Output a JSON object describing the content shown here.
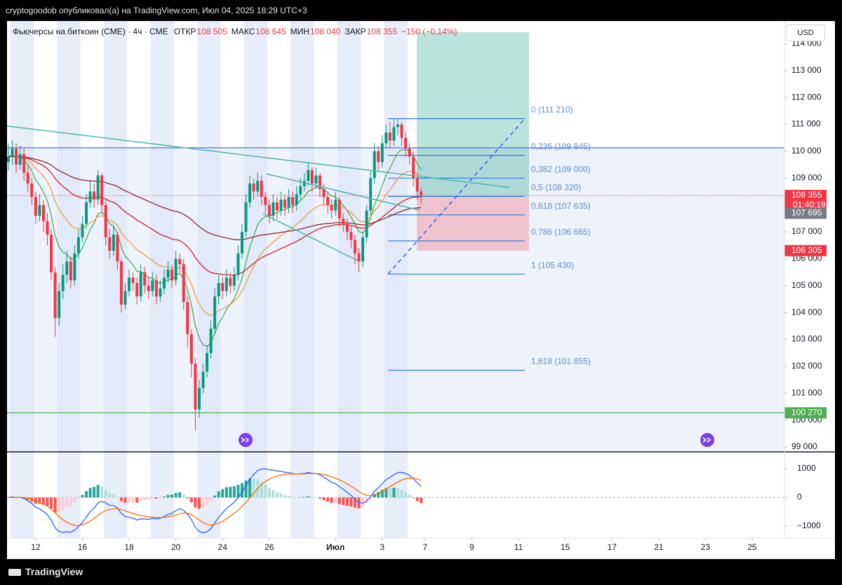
{
  "header": {
    "text": "cryptogoodob опубликовал(а) на TradingView.com, Июл 04, 2025 18:29 UTC+3"
  },
  "footer": {
    "brand": "TradingView"
  },
  "chart_data": [
    {
      "type": "candlestick",
      "title": "Фьючерсы на биткоин (CME) · 4ч · CME",
      "legend": [
        {
          "name": "ОТКР",
          "value": "108 505"
        },
        {
          "name": "МАКС",
          "value": "108 645"
        },
        {
          "name": "МИН",
          "value": "108 040"
        },
        {
          "name": "ЗАКР",
          "value": "108 355"
        }
      ],
      "change": "−150 (−0,14%)",
      "currency": "USD",
      "colors": {
        "up": "#089981",
        "down": "#f23645"
      },
      "ohlc": [
        [
          109600,
          110300,
          109300,
          109800
        ],
        [
          109800,
          110400,
          109500,
          110100
        ],
        [
          110100,
          110300,
          109200,
          109500
        ],
        [
          109500,
          110200,
          109300,
          109900
        ],
        [
          109900,
          110100,
          108900,
          109200
        ],
        [
          109200,
          109500,
          108500,
          108800
        ],
        [
          108800,
          109000,
          108000,
          108300
        ],
        [
          108300,
          108500,
          107300,
          107600
        ],
        [
          107600,
          108400,
          107400,
          108000
        ],
        [
          108000,
          108200,
          107000,
          107400
        ],
        [
          107400,
          107700,
          106500,
          106900
        ],
        [
          106900,
          107100,
          105200,
          105500
        ],
        [
          105500,
          105700,
          103100,
          103800
        ],
        [
          103800,
          105100,
          103500,
          104800
        ],
        [
          104800,
          105800,
          104500,
          105400
        ],
        [
          105400,
          106300,
          105100,
          105900
        ],
        [
          105900,
          106100,
          104900,
          105200
        ],
        [
          105200,
          106500,
          105000,
          106200
        ],
        [
          106200,
          107100,
          106000,
          106800
        ],
        [
          106800,
          107600,
          106600,
          107300
        ],
        [
          107300,
          108400,
          107100,
          108100
        ],
        [
          108100,
          108900,
          107900,
          108500
        ],
        [
          108500,
          108800,
          107900,
          108200
        ],
        [
          108200,
          109300,
          108000,
          109100
        ],
        [
          109100,
          109200,
          107700,
          108000
        ],
        [
          108000,
          108200,
          106500,
          106800
        ],
        [
          106800,
          107100,
          106000,
          106300
        ],
        [
          106300,
          107200,
          106100,
          106900
        ],
        [
          106900,
          107000,
          105600,
          105900
        ],
        [
          105900,
          106000,
          104000,
          104300
        ],
        [
          104300,
          105100,
          104100,
          104800
        ],
        [
          104800,
          105600,
          104600,
          105300
        ],
        [
          105300,
          105500,
          104800,
          105100
        ],
        [
          105100,
          105300,
          104300,
          104600
        ],
        [
          104600,
          105800,
          104400,
          105500
        ],
        [
          105500,
          105700,
          104700,
          105000
        ],
        [
          105000,
          105300,
          104500,
          104800
        ],
        [
          104800,
          105500,
          104600,
          105200
        ],
        [
          105200,
          105400,
          104300,
          104600
        ],
        [
          104600,
          105200,
          104400,
          104900
        ],
        [
          104900,
          105600,
          104700,
          105300
        ],
        [
          105300,
          105900,
          105100,
          105600
        ],
        [
          105600,
          105800,
          104900,
          105200
        ],
        [
          105200,
          106300,
          105000,
          106000
        ],
        [
          106000,
          106200,
          105500,
          105800
        ],
        [
          105800,
          106000,
          104100,
          104400
        ],
        [
          104400,
          104600,
          102700,
          103200
        ],
        [
          103200,
          103400,
          101600,
          102100
        ],
        [
          102100,
          102300,
          99600,
          100400
        ],
        [
          100400,
          101500,
          100100,
          101200
        ],
        [
          101200,
          102100,
          101000,
          101800
        ],
        [
          101800,
          102800,
          101600,
          102500
        ],
        [
          102500,
          103700,
          102300,
          103400
        ],
        [
          103400,
          104900,
          103200,
          104600
        ],
        [
          104600,
          105400,
          104300,
          105100
        ],
        [
          105100,
          105300,
          104500,
          104800
        ],
        [
          104800,
          105600,
          104600,
          105300
        ],
        [
          105300,
          105500,
          104700,
          105000
        ],
        [
          105000,
          105700,
          104800,
          105400
        ],
        [
          105400,
          106500,
          105200,
          106200
        ],
        [
          106200,
          107300,
          106000,
          107000
        ],
        [
          107000,
          108400,
          106800,
          108100
        ],
        [
          108100,
          109100,
          107900,
          108800
        ],
        [
          108800,
          109000,
          108200,
          108500
        ],
        [
          108500,
          109200,
          108300,
          108900
        ],
        [
          108900,
          109100,
          108000,
          108300
        ],
        [
          108300,
          108500,
          107700,
          108000
        ],
        [
          108000,
          108200,
          107300,
          107600
        ],
        [
          107600,
          108400,
          107400,
          108100
        ],
        [
          108100,
          108300,
          107500,
          107800
        ],
        [
          107800,
          108500,
          107600,
          108200
        ],
        [
          108200,
          108400,
          107600,
          107900
        ],
        [
          107900,
          108600,
          107700,
          108300
        ],
        [
          108300,
          108500,
          107700,
          108000
        ],
        [
          108000,
          108700,
          107800,
          108400
        ],
        [
          108400,
          109000,
          108200,
          108700
        ],
        [
          108700,
          109200,
          108500,
          108900
        ],
        [
          108900,
          109600,
          108700,
          109300
        ],
        [
          109300,
          109400,
          108500,
          108800
        ],
        [
          108800,
          109400,
          108600,
          109100
        ],
        [
          109100,
          109200,
          108300,
          108600
        ],
        [
          108600,
          108800,
          108000,
          108300
        ],
        [
          108300,
          108500,
          107700,
          108000
        ],
        [
          108000,
          108200,
          107500,
          107800
        ],
        [
          107800,
          108500,
          107600,
          108200
        ],
        [
          108200,
          108300,
          107200,
          107500
        ],
        [
          107500,
          107700,
          107000,
          107300
        ],
        [
          107300,
          107500,
          106700,
          107000
        ],
        [
          107000,
          107200,
          106400,
          106700
        ],
        [
          106700,
          106900,
          105800,
          106200
        ],
        [
          106200,
          106400,
          105500,
          105900
        ],
        [
          105900,
          107000,
          105700,
          106800
        ],
        [
          106800,
          108000,
          106600,
          107800
        ],
        [
          107800,
          109300,
          107600,
          109000
        ],
        [
          109000,
          110300,
          108800,
          110000
        ],
        [
          110000,
          110200,
          109300,
          109600
        ],
        [
          109600,
          110600,
          109400,
          110300
        ],
        [
          110300,
          111000,
          110100,
          110700
        ],
        [
          110700,
          111100,
          110100,
          110400
        ],
        [
          110400,
          111200,
          110200,
          110900
        ],
        [
          110900,
          111210,
          110600,
          111000
        ],
        [
          111000,
          111100,
          110200,
          110500
        ],
        [
          110500,
          110700,
          109800,
          110100
        ],
        [
          110100,
          110300,
          109500,
          109800
        ],
        [
          109800,
          110000,
          108700,
          109000
        ],
        [
          109000,
          109200,
          108200,
          108500
        ],
        [
          108505,
          108645,
          108040,
          108355
        ]
      ],
      "moving_averages": [
        {
          "period": 9,
          "color": "#4caf50"
        },
        {
          "period": 21,
          "color": "#f0a04b"
        },
        {
          "period": 50,
          "color": "#c62828"
        },
        {
          "period": 100,
          "color": "#8d2a2a"
        }
      ],
      "xlim": [
        -0.36,
        199.3
      ],
      "xticks": [
        {
          "value": 7,
          "label": "12"
        },
        {
          "value": 19,
          "label": "16"
        },
        {
          "value": 31,
          "label": "18"
        },
        {
          "value": 43,
          "label": "20"
        },
        {
          "value": 55,
          "label": "24"
        },
        {
          "value": 67,
          "label": "26"
        },
        {
          "value": 84,
          "label": "Июл"
        },
        {
          "value": 96,
          "label": "3"
        },
        {
          "value": 107,
          "label": "7"
        },
        {
          "value": 119,
          "label": "9"
        },
        {
          "value": 131,
          "label": "11"
        },
        {
          "value": 143,
          "label": "15"
        },
        {
          "value": 155,
          "label": "17"
        },
        {
          "value": 167,
          "label": "21"
        },
        {
          "value": 179,
          "label": "23"
        },
        {
          "value": 191,
          "label": "25"
        }
      ],
      "ylim": [
        98844,
        114846
      ],
      "yticks": [
        {
          "value": 99000,
          "label": "99 000"
        },
        {
          "value": 100000,
          "label": "100 000"
        },
        {
          "value": 101000,
          "label": "101 000"
        },
        {
          "value": 102000,
          "label": "102 000"
        },
        {
          "value": 103000,
          "label": "103 000"
        },
        {
          "value": 104000,
          "label": "104 000"
        },
        {
          "value": 105000,
          "label": "105 000"
        },
        {
          "value": 106000,
          "label": "106 000"
        },
        {
          "value": 107000,
          "label": "107 000"
        },
        {
          "value": 108000,
          "label": "108 000"
        },
        {
          "value": 109000,
          "label": "109 000"
        },
        {
          "value": 110000,
          "label": "110 000"
        },
        {
          "value": 111000,
          "label": "111 000"
        },
        {
          "value": 112000,
          "label": "112 000"
        },
        {
          "value": 113000,
          "label": "113 000"
        },
        {
          "value": 114000,
          "label": "114 000"
        }
      ],
      "fib": {
        "x": [
          97.5,
          132.6
        ],
        "levels": [
          {
            "label": "0 (111 210)",
            "value": 111210
          },
          {
            "label": "0,236 (109 845)",
            "value": 109845
          },
          {
            "label": "0,382 (109 000)",
            "value": 109000
          },
          {
            "label": "0,5 (108 320)",
            "value": 108320
          },
          {
            "label": "0,618 (107 635)",
            "value": 107635
          },
          {
            "label": "0,786 (106 665)",
            "value": 106665
          },
          {
            "label": "1 (105 430)",
            "value": 105430
          },
          {
            "label": "1,618 (101 855)",
            "value": 101855
          }
        ]
      },
      "hlines": [
        {
          "value": 110130,
          "color": "#2962ff"
        },
        {
          "value": 100270,
          "color": "#4caf50"
        }
      ],
      "position": {
        "x": [
          104.9,
          133.7
        ],
        "target": 114430,
        "entry": 108300,
        "stop": 106305
      },
      "trendlines": [
        {
          "x": [
            -0.36,
            128.6
          ],
          "y": [
            110940,
            108660
          ],
          "color": "#4db6ac",
          "dash": false
        },
        {
          "x": [
            66.3,
            105.6
          ],
          "y": [
            109160,
            107810
          ],
          "color": "#4db6ac",
          "dash": false
        },
        {
          "x": [
            65.4,
            89.7
          ],
          "y": [
            107680,
            105930
          ],
          "color": "#4db6ac",
          "dash": false
        },
        {
          "x": [
            97.5,
            132.6
          ],
          "y": [
            105430,
            111210
          ],
          "color": "#2962ff",
          "dash": true
        }
      ],
      "price_tags": [
        {
          "label": "108 355",
          "value": 108355,
          "color": "#f23645",
          "countdown": "01:40:19"
        },
        {
          "label": "107 695",
          "value": 107695,
          "color": "#787b86"
        },
        {
          "label": "106 305",
          "value": 106305,
          "color": "#f23645"
        },
        {
          "label": "100 270",
          "value": 100270,
          "color": "#4caf50"
        }
      ]
    },
    {
      "type": "macd",
      "fast": 12,
      "slow": 26,
      "signal": 9,
      "colors": {
        "macd": "#2962ff",
        "signal": "#ff6d00",
        "up": "#26a69a",
        "up_light": "#b2dfdb",
        "down": "#ff5252",
        "down_light": "#ffcdd2"
      },
      "ylim": [
        -1415,
        1512
      ],
      "yticks": [
        1000,
        0,
        {
          "value": -1000,
          "label": "−1000"
        }
      ]
    }
  ]
}
